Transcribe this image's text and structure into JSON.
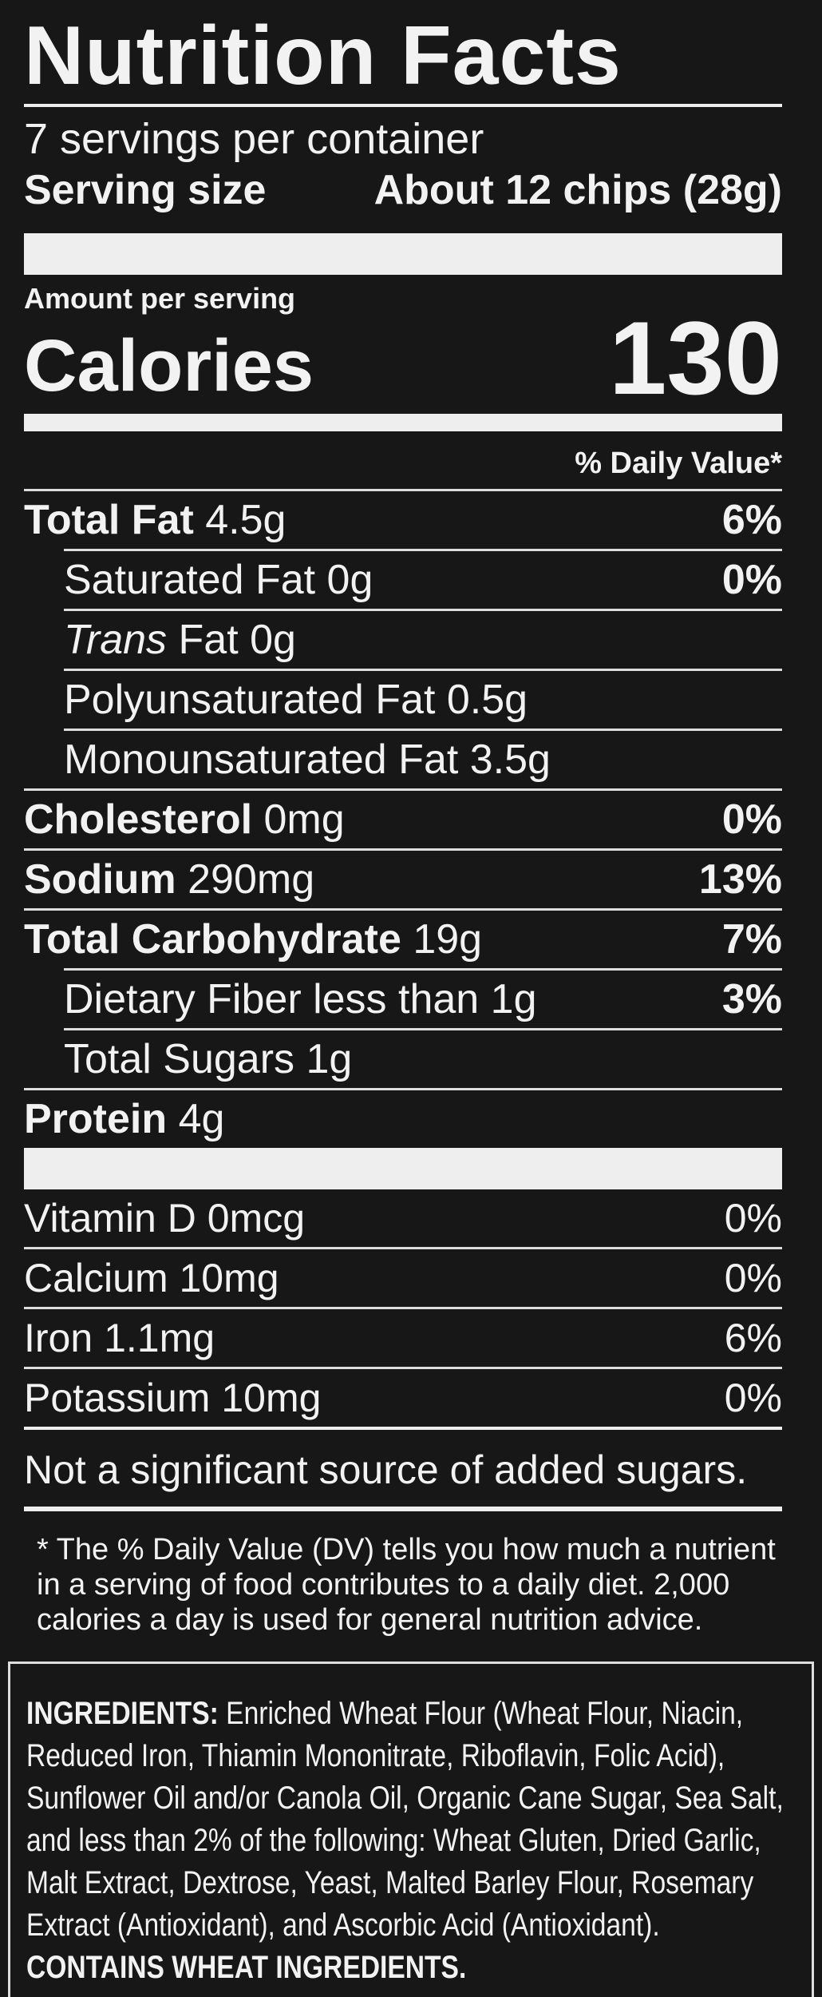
{
  "header": {
    "title": "Nutrition Facts",
    "servings": "7 servings per container",
    "serving_size_label": "Serving size",
    "serving_size_value": "About 12 chips (28g)"
  },
  "calories": {
    "amount_label": "Amount per serving",
    "label": "Calories",
    "value": "130"
  },
  "dv_header": "% Daily Value*",
  "nutrients": [
    {
      "name": "Total Fat",
      "amount": "4.5g",
      "dv": "6%",
      "bold": true,
      "indent": false
    },
    {
      "name": "Saturated Fat",
      "amount": "0g",
      "dv": "0%",
      "bold": false,
      "indent": true
    },
    {
      "name_italic": "Trans",
      "name": "Fat",
      "amount": "0g",
      "bold": false,
      "indent": true
    },
    {
      "name": "Polyunsaturated Fat",
      "amount": "0.5g",
      "bold": false,
      "indent": true
    },
    {
      "name": "Monounsaturated Fat",
      "amount": "3.5g",
      "bold": false,
      "indent": true
    },
    {
      "name": "Cholesterol",
      "amount": "0mg",
      "dv": "0%",
      "bold": true,
      "indent": false
    },
    {
      "name": "Sodium",
      "amount": "290mg",
      "dv": "13%",
      "bold": true,
      "indent": false
    },
    {
      "name": "Total Carbohydrate",
      "amount": "19g",
      "dv": "7%",
      "bold": true,
      "indent": false
    },
    {
      "name": "Dietary Fiber less than",
      "amount": "1g",
      "dv": "3%",
      "bold": false,
      "indent": true
    },
    {
      "name": "Total Sugars",
      "amount": "1g",
      "bold": false,
      "indent": true
    },
    {
      "name": "Protein",
      "amount": "4g",
      "bold": true,
      "indent": false
    }
  ],
  "vitamins": [
    {
      "name": "Vitamin D",
      "amount": "0mcg",
      "dv": "0%"
    },
    {
      "name": "Calcium",
      "amount": "10mg",
      "dv": "0%"
    },
    {
      "name": "Iron",
      "amount": "1.1mg",
      "dv": "6%"
    },
    {
      "name": "Potassium",
      "amount": "10mg",
      "dv": "0%"
    }
  ],
  "added_sugars_note": "Not a significant source of added sugars.",
  "footnote": [
    "* The % Daily Value (DV) tells you how much a nutrient",
    "in a serving of food contributes to a daily diet. 2,000",
    "calories a day is used for general nutrition advice."
  ],
  "ingredients": {
    "label": "INGREDIENTS:",
    "lines": [
      "Enriched Wheat Flour (Wheat Flour, Niacin,",
      "Reduced Iron, Thiamin Mononitrate, Riboflavin, Folic Acid),",
      "Sunflower Oil and/or Canola Oil, Organic Cane Sugar, Sea Salt,",
      "and less than 2% of the following: Wheat Gluten, Dried Garlic,",
      "Malt Extract, Dextrose, Yeast, Malted Barley Flour, Rosemary",
      "Extract (Antioxidant), and Ascorbic Acid (Antioxidant)."
    ],
    "contains": "CONTAINS WHEAT INGREDIENTS."
  }
}
